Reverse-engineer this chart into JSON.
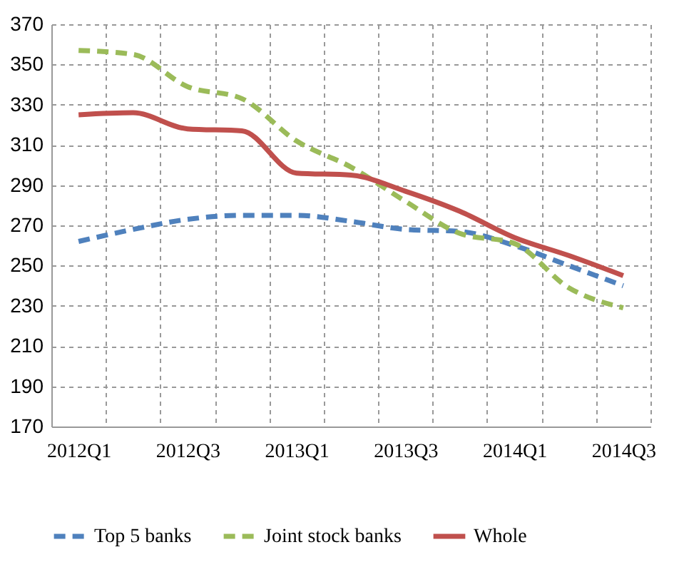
{
  "chart_data": {
    "type": "line",
    "categories": [
      "2012Q1",
      null,
      "2012Q3",
      null,
      "2013Q1",
      null,
      "2013Q3",
      null,
      "2014Q1",
      null,
      "2014Q3"
    ],
    "series": [
      {
        "name": "Top 5 banks",
        "color": "#4f81bd",
        "line_style": "dashed",
        "values": [
          262,
          268,
          273,
          275,
          275,
          272,
          268,
          267,
          260,
          250,
          240
        ]
      },
      {
        "name": "Joint stock banks",
        "color": "#9bbb59",
        "line_style": "dashed",
        "values": [
          357,
          355,
          339,
          333,
          312,
          299,
          282,
          266,
          261,
          239,
          229
        ]
      },
      {
        "name": "Whole",
        "color": "#c0504d",
        "line_style": "solid",
        "values": [
          325,
          326,
          318,
          317,
          296,
          295,
          287,
          277,
          264,
          255,
          245
        ]
      }
    ],
    "ylim": [
      170,
      370
    ],
    "yticks": [
      170,
      190,
      210,
      230,
      250,
      270,
      290,
      310,
      330,
      350,
      370
    ],
    "grid": true,
    "legend": "bottom"
  }
}
